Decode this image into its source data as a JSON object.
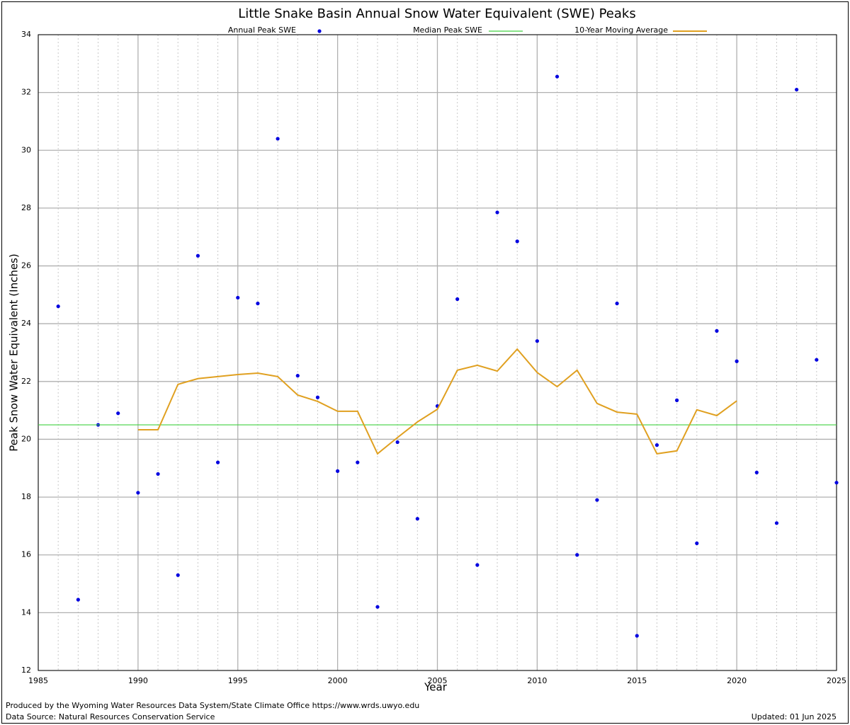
{
  "chart_data": {
    "type": "scatter-line",
    "title": "Little Snake Basin Annual Snow Water Equivalent (SWE) Peaks",
    "x_label": "Year",
    "y_label": "Peak Snow Water Equivalent (Inches)",
    "xlim": [
      1985,
      2025
    ],
    "xticks": [
      1985,
      1990,
      1995,
      2000,
      2005,
      2010,
      2015,
      2020,
      2025
    ],
    "xminorticks": [
      1986,
      1987,
      1988,
      1989,
      1991,
      1992,
      1993,
      1994,
      1996,
      1997,
      1998,
      1999,
      2001,
      2002,
      2003,
      2004,
      2006,
      2007,
      2008,
      2009,
      2011,
      2012,
      2013,
      2014,
      2016,
      2017,
      2018,
      2019,
      2021,
      2022,
      2023,
      2024
    ],
    "ylim": [
      12,
      34
    ],
    "yticks": [
      12,
      14,
      16,
      18,
      20,
      22,
      24,
      26,
      28,
      30,
      32,
      34
    ],
    "grid": true,
    "legend": "top",
    "series": [
      {
        "name": "Annual Peak SWE",
        "kind": "points",
        "color": "#0000e0",
        "x": [
          1986,
          1987,
          1988,
          1989,
          1990,
          1991,
          1992,
          1993,
          1994,
          1995,
          1996,
          1997,
          1998,
          1999,
          2000,
          2001,
          2002,
          2003,
          2004,
          2005,
          2006,
          2007,
          2008,
          2009,
          2010,
          2011,
          2012,
          2013,
          2014,
          2015,
          2016,
          2017,
          2018,
          2019,
          2020,
          2021,
          2022,
          2023,
          2024,
          2025
        ],
        "values": [
          24.6,
          14.45,
          20.5,
          20.9,
          18.15,
          18.8,
          15.3,
          26.35,
          19.2,
          24.9,
          24.7,
          30.4,
          22.2,
          21.45,
          18.9,
          19.2,
          14.2,
          19.9,
          17.25,
          21.15,
          24.85,
          15.65,
          27.85,
          26.85,
          23.4,
          32.55,
          16.0,
          17.9,
          24.7,
          13.2,
          19.8,
          21.35,
          16.4,
          23.75,
          22.7,
          18.85,
          17.1,
          32.1,
          22.75,
          18.5
        ]
      },
      {
        "name": "Median Peak SWE",
        "kind": "hline",
        "color": "#40d040",
        "value": 20.5
      },
      {
        "name": "10-Year Moving Average",
        "kind": "line",
        "color": "#e0a020",
        "x": [
          1990,
          1991,
          1992,
          1993,
          1994,
          1995,
          1996,
          1997,
          1998,
          1999,
          2000,
          2001,
          2002,
          2003,
          2004,
          2005,
          2006,
          2007,
          2008,
          2009,
          2010,
          2011,
          2012,
          2013,
          2014,
          2015,
          2016,
          2017,
          2018,
          2019,
          2020
        ],
        "values": [
          20.33,
          20.33,
          21.9,
          22.1,
          22.17,
          22.24,
          22.29,
          22.17,
          21.53,
          21.31,
          20.97,
          20.97,
          19.5,
          20.06,
          20.6,
          21.04,
          22.39,
          22.56,
          22.36,
          23.12,
          22.31,
          21.82,
          22.39,
          21.24,
          20.94,
          20.87,
          19.5,
          19.6,
          21.02,
          20.82,
          21.33
        ]
      }
    ]
  },
  "footer": {
    "produced_by": "Produced by the Wyoming Water Resources Data System/State Climate Office https://www.wrds.uwyo.edu",
    "source": "Data Source: Natural Resources Conservation Service",
    "updated": "Updated: 01 Jun 2025"
  }
}
